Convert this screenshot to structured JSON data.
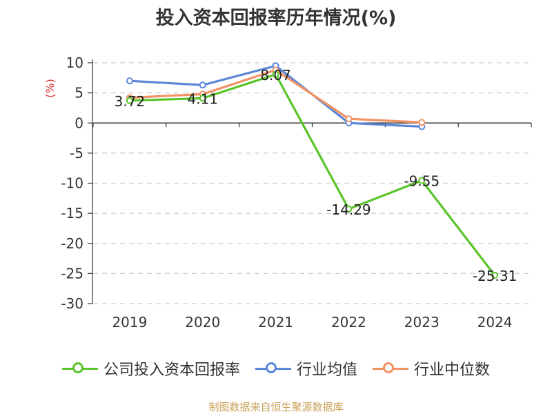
{
  "chart_data": {
    "type": "line",
    "title": "投入资本回报率历年情况(%)",
    "ylabel": "(%)",
    "categories": [
      "2019",
      "2020",
      "2021",
      "2022",
      "2023",
      "2024"
    ],
    "ylim": [
      -30,
      10
    ],
    "yticks": [
      10,
      5,
      0,
      -5,
      -10,
      -15,
      -20,
      -25,
      -30
    ],
    "grid": true,
    "legend_position": "bottom",
    "series": [
      {
        "name": "公司投入资本回报率",
        "color": "#5ac429",
        "values": [
          3.72,
          4.11,
          8.07,
          -14.29,
          -9.55,
          -25.31
        ],
        "labels": [
          "3.72",
          "4.11",
          "8.07",
          "-14.29",
          "-9.55",
          "-25.31"
        ]
      },
      {
        "name": "行业均值",
        "color": "#5b87d9",
        "values": [
          7.0,
          6.3,
          9.5,
          0.0,
          -0.6,
          null
        ]
      },
      {
        "name": "行业中位数",
        "color": "#f19364",
        "values": [
          4.2,
          4.8,
          8.8,
          0.7,
          0.1,
          null
        ]
      }
    ]
  },
  "source": "制图数据来自恒生聚源数据库"
}
